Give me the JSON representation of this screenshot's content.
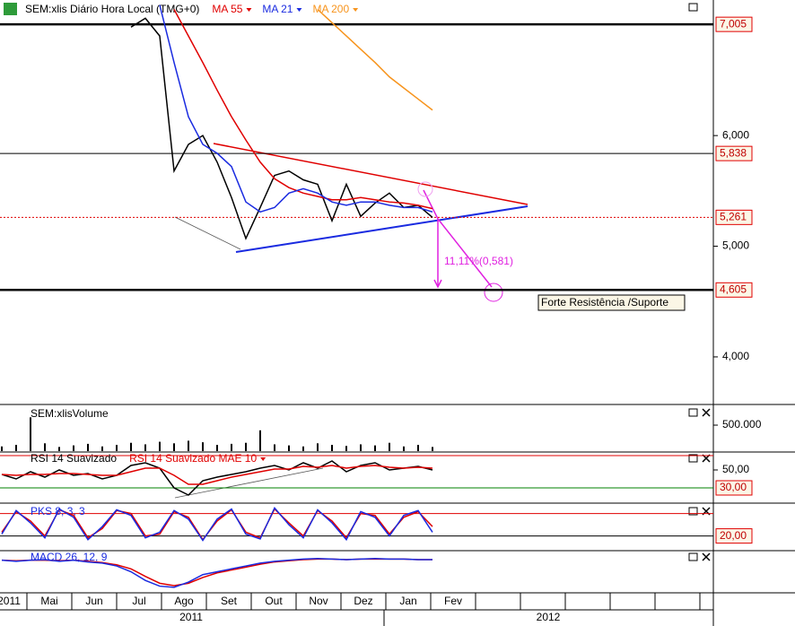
{
  "chart_data": [
    {
      "type": "line",
      "title": "SEM:xlis Diário Hora Local (TMG+0)",
      "ylim": [
        3.57,
        7.225
      ],
      "yticks": [
        {
          "value": 4,
          "label": "4,000"
        },
        {
          "value": 5,
          "label": "5,000"
        },
        {
          "value": 6,
          "label": "6,000"
        }
      ],
      "levels": [
        {
          "value": 7.005,
          "label": "7,005",
          "color": "#000000"
        },
        {
          "value": 5.838,
          "label": "5,838",
          "color": "#000000"
        },
        {
          "value": 5.261,
          "label": "5,261",
          "color": "#e00000"
        },
        {
          "value": 4.605,
          "label": "4,605",
          "color": "#000000"
        }
      ],
      "annotations": [
        "11,11%(0,581)",
        "Forte Resistência /Suporte"
      ],
      "x_labels": [
        "2011",
        "Mai",
        "Jun",
        "Jul",
        "Ago",
        "Set",
        "Out",
        "Nov",
        "Dez",
        "Jan",
        "Fev"
      ],
      "year_labels": [
        "2011",
        "2012"
      ],
      "series": [
        {
          "name": null,
          "color": "#000000",
          "values": [
            null,
            null,
            null,
            null,
            null,
            null,
            null,
            null,
            null,
            6.98,
            7.06,
            6.9,
            5.68,
            5.92,
            6.0,
            5.76,
            5.44,
            5.07,
            5.35,
            5.64,
            5.68,
            5.6,
            5.56,
            5.23,
            5.56,
            5.27,
            5.39,
            5.48,
            5.35,
            5.37,
            5.26
          ]
        },
        {
          "name": "MA 55",
          "color": "#e00000",
          "values": [
            null,
            null,
            null,
            null,
            null,
            null,
            null,
            null,
            null,
            null,
            null,
            null,
            7.14,
            6.9,
            6.66,
            6.41,
            6.17,
            5.96,
            5.76,
            5.61,
            5.53,
            5.48,
            5.45,
            5.42,
            5.42,
            5.44,
            5.42,
            5.4,
            5.39,
            5.37,
            5.34
          ]
        },
        {
          "name": "MA 21",
          "color": "#1a2be0",
          "values": [
            null,
            null,
            null,
            null,
            null,
            null,
            null,
            null,
            null,
            null,
            null,
            7.18,
            6.66,
            6.17,
            5.92,
            5.84,
            5.72,
            5.4,
            5.31,
            5.35,
            5.48,
            5.52,
            5.48,
            5.4,
            5.37,
            5.4,
            5.4,
            5.37,
            5.35,
            5.35,
            5.31
          ]
        },
        {
          "name": "MA 200",
          "color": "#f7941d",
          "values": [
            null,
            null,
            null,
            null,
            null,
            null,
            null,
            null,
            null,
            null,
            null,
            null,
            null,
            null,
            null,
            null,
            null,
            null,
            null,
            null,
            null,
            null,
            7.14,
            7.02,
            6.9,
            6.78,
            6.66,
            6.53,
            6.43,
            6.33,
            6.23
          ]
        }
      ]
    },
    {
      "type": "bar",
      "title": "SEM:xlisVolume",
      "ylim": [
        0,
        880000
      ],
      "yticks": [
        {
          "value": 500000,
          "label": "500.000"
        }
      ],
      "series": [
        {
          "name": null,
          "color": "#000000",
          "values": [
            90000,
            120000,
            650000,
            150000,
            80000,
            110000,
            140000,
            90000,
            120000,
            160000,
            130000,
            180000,
            150000,
            200000,
            170000,
            120000,
            140000,
            160000,
            400000,
            130000,
            110000,
            90000,
            150000,
            120000,
            100000,
            130000,
            110000,
            160000,
            90000,
            120000,
            80000
          ]
        }
      ]
    },
    {
      "type": "line",
      "title": "RSI 14 Suavizado",
      "ylim": [
        14,
        69
      ],
      "yticks": [
        {
          "value": 50,
          "label": "50,00"
        }
      ],
      "levels": [
        {
          "value": 66,
          "color": "#e00000"
        },
        {
          "value": 30,
          "label": "30,00",
          "color": "#008000"
        }
      ],
      "series": [
        {
          "name": "RSI 14 Suavizado",
          "color": "#000000",
          "values": [
            45,
            40,
            48,
            42,
            50,
            44,
            46,
            40,
            44,
            55,
            58,
            52,
            30,
            22,
            38,
            42,
            45,
            48,
            52,
            55,
            50,
            58,
            52,
            60,
            48,
            55,
            58,
            50,
            52,
            54,
            50
          ]
        },
        {
          "name": "RSI 14 Suavizado MAE 10",
          "color": "#e00000",
          "values": [
            45,
            44,
            45,
            45,
            46,
            46,
            45,
            44,
            44,
            48,
            52,
            52,
            44,
            34,
            34,
            38,
            42,
            45,
            48,
            51,
            51,
            54,
            53,
            55,
            52,
            54,
            55,
            53,
            52,
            53,
            52
          ]
        }
      ]
    },
    {
      "type": "line",
      "title": "PKS 8, 3, 3",
      "ylim": [
        -17,
        103
      ],
      "levels": [
        {
          "value": 80,
          "color": "#e00000"
        },
        {
          "value": 20,
          "label": "20,00",
          "color": "#000000"
        }
      ],
      "series": [
        {
          "name": null,
          "color": "#e00000",
          "values": [
            30,
            85,
            60,
            20,
            90,
            75,
            15,
            40,
            88,
            80,
            20,
            25,
            85,
            70,
            10,
            60,
            90,
            30,
            15,
            92,
            55,
            20,
            88,
            60,
            15,
            80,
            75,
            25,
            70,
            85,
            45
          ]
        },
        {
          "name": null,
          "color": "#1a2be0",
          "values": [
            25,
            88,
            55,
            15,
            92,
            70,
            10,
            45,
            90,
            75,
            15,
            30,
            88,
            65,
            8,
            65,
            92,
            25,
            12,
            95,
            50,
            15,
            90,
            55,
            10,
            85,
            70,
            20,
            75,
            88,
            30
          ]
        }
      ]
    },
    {
      "type": "line",
      "title": "MACD 26, 12, 9",
      "ylim": [
        -0.55,
        0.15
      ],
      "series": [
        {
          "name": null,
          "color": "#e00000",
          "values": [
            0,
            -0.01,
            0,
            0,
            -0.01,
            0,
            -0.02,
            -0.04,
            -0.08,
            -0.15,
            -0.28,
            -0.4,
            -0.44,
            -0.4,
            -0.3,
            -0.22,
            -0.17,
            -0.12,
            -0.07,
            -0.03,
            -0.01,
            0.01,
            0.02,
            0.02,
            0.01,
            0.02,
            0.02,
            0.02,
            0.02,
            0.01,
            0.01
          ]
        },
        {
          "name": null,
          "color": "#1a2be0",
          "values": [
            0,
            -0.02,
            0,
            0.01,
            -0.02,
            0,
            -0.03,
            -0.05,
            -0.1,
            -0.2,
            -0.35,
            -0.45,
            -0.47,
            -0.38,
            -0.25,
            -0.2,
            -0.15,
            -0.1,
            -0.05,
            -0.02,
            0,
            0.02,
            0.03,
            0.02,
            0.01,
            0.02,
            0.03,
            0.02,
            0.02,
            0.01,
            0.01
          ]
        }
      ]
    }
  ]
}
